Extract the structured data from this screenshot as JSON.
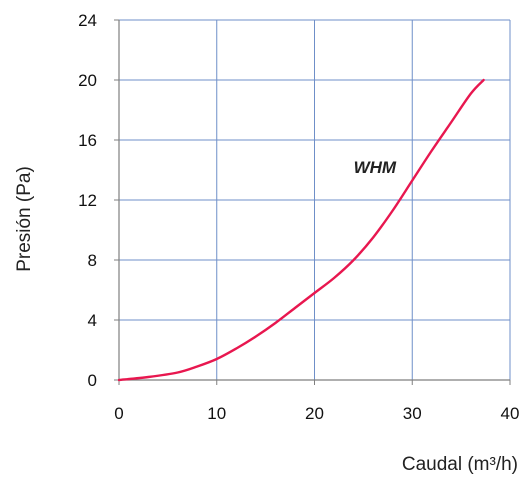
{
  "chart_data": {
    "type": "line",
    "xlabel": "Caudal (m³/h)",
    "ylabel": "Presión (Pa)",
    "xlim": [
      0,
      40
    ],
    "ylim": [
      0,
      24
    ],
    "x_ticks": [
      0,
      10,
      20,
      30,
      40
    ],
    "y_ticks": [
      0,
      4,
      8,
      12,
      16,
      20,
      24
    ],
    "grid": true,
    "colors": {
      "line": "#e8174f",
      "grid": "#6f8fc8",
      "axis": "#7f7f7f"
    },
    "series": [
      {
        "name": "WHM",
        "x": [
          0,
          3,
          6,
          8,
          10,
          12,
          14,
          16,
          18,
          20,
          22,
          24,
          26,
          28,
          30,
          32,
          34,
          36,
          37.3
        ],
        "y": [
          0,
          0.2,
          0.5,
          0.9,
          1.4,
          2.1,
          2.9,
          3.8,
          4.8,
          5.8,
          6.8,
          8.0,
          9.5,
          11.3,
          13.3,
          15.3,
          17.2,
          19.1,
          20.0
        ]
      }
    ],
    "annotations": [
      {
        "text": "WHM",
        "x": 24,
        "y": 13.8
      }
    ]
  }
}
